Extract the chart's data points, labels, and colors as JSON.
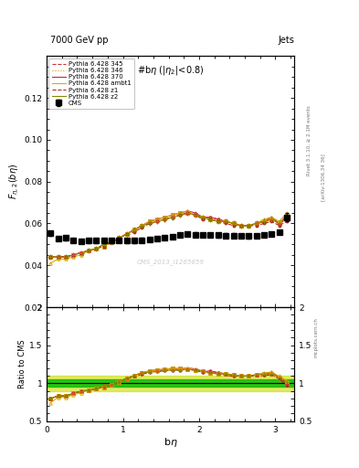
{
  "title_top_left": "7000 GeV pp",
  "title_top_right": "Jets",
  "plot_title": "#bη (|η₂|<0.8)",
  "watermark": "CMS_2013_I1265659",
  "rivet_label": "Rivet 3.1.10, ≥ 2.1M events",
  "arxiv_label": "[arXiv:1306.34 36]",
  "mcplots_label": "mcplots.cern.ch",
  "ylim_main": [
    0.02,
    0.14
  ],
  "ylim_ratio": [
    0.5,
    2.0
  ],
  "xlim": [
    0.0,
    3.25
  ],
  "cms_x": [
    0.05,
    0.15,
    0.25,
    0.35,
    0.45,
    0.55,
    0.65,
    0.75,
    0.85,
    0.95,
    1.05,
    1.15,
    1.25,
    1.35,
    1.45,
    1.55,
    1.65,
    1.75,
    1.85,
    1.95,
    2.05,
    2.15,
    2.25,
    2.35,
    2.45,
    2.55,
    2.65,
    2.75,
    2.85,
    2.95,
    3.05,
    3.15
  ],
  "cms_y": [
    0.0552,
    0.0527,
    0.053,
    0.0519,
    0.0515,
    0.0517,
    0.0518,
    0.0518,
    0.0519,
    0.052,
    0.0518,
    0.0517,
    0.052,
    0.0524,
    0.0528,
    0.0532,
    0.0536,
    0.0546,
    0.055,
    0.0547,
    0.0545,
    0.0545,
    0.0544,
    0.0543,
    0.0542,
    0.054,
    0.0539,
    0.054,
    0.0545,
    0.055,
    0.0558,
    0.063
  ],
  "cms_yerr": [
    0.001,
    0.001,
    0.001,
    0.001,
    0.001,
    0.001,
    0.001,
    0.001,
    0.001,
    0.001,
    0.001,
    0.001,
    0.001,
    0.001,
    0.001,
    0.001,
    0.001,
    0.001,
    0.001,
    0.001,
    0.001,
    0.001,
    0.001,
    0.001,
    0.001,
    0.001,
    0.001,
    0.001,
    0.001,
    0.001,
    0.001,
    0.002
  ],
  "p345_y": [
    0.044,
    0.044,
    0.044,
    0.045,
    0.046,
    0.047,
    0.048,
    0.05,
    0.051,
    0.053,
    0.055,
    0.057,
    0.059,
    0.06,
    0.061,
    0.062,
    0.063,
    0.064,
    0.065,
    0.064,
    0.063,
    0.063,
    0.062,
    0.061,
    0.06,
    0.059,
    0.059,
    0.06,
    0.061,
    0.062,
    0.06,
    0.062
  ],
  "p346_y": [
    0.044,
    0.044,
    0.044,
    0.045,
    0.046,
    0.047,
    0.048,
    0.049,
    0.051,
    0.053,
    0.055,
    0.057,
    0.059,
    0.061,
    0.062,
    0.063,
    0.064,
    0.065,
    0.065,
    0.064,
    0.063,
    0.062,
    0.061,
    0.061,
    0.06,
    0.059,
    0.059,
    0.06,
    0.061,
    0.062,
    0.06,
    0.063
  ],
  "p370_y": [
    0.044,
    0.044,
    0.044,
    0.045,
    0.046,
    0.047,
    0.048,
    0.05,
    0.051,
    0.053,
    0.055,
    0.057,
    0.059,
    0.061,
    0.062,
    0.063,
    0.064,
    0.065,
    0.066,
    0.065,
    0.063,
    0.063,
    0.062,
    0.061,
    0.06,
    0.059,
    0.059,
    0.06,
    0.061,
    0.063,
    0.06,
    0.063
  ],
  "pambt1_y": [
    0.041,
    0.043,
    0.043,
    0.044,
    0.045,
    0.047,
    0.048,
    0.05,
    0.051,
    0.053,
    0.055,
    0.057,
    0.059,
    0.061,
    0.062,
    0.063,
    0.064,
    0.065,
    0.066,
    0.064,
    0.063,
    0.062,
    0.061,
    0.061,
    0.06,
    0.059,
    0.059,
    0.06,
    0.062,
    0.063,
    0.061,
    0.065
  ],
  "pz1_y": [
    0.044,
    0.044,
    0.044,
    0.045,
    0.046,
    0.047,
    0.048,
    0.049,
    0.051,
    0.053,
    0.055,
    0.056,
    0.058,
    0.06,
    0.061,
    0.062,
    0.063,
    0.064,
    0.065,
    0.064,
    0.062,
    0.062,
    0.061,
    0.06,
    0.059,
    0.059,
    0.059,
    0.059,
    0.06,
    0.061,
    0.059,
    0.061
  ],
  "pz2_y": [
    0.044,
    0.044,
    0.044,
    0.045,
    0.046,
    0.047,
    0.048,
    0.05,
    0.051,
    0.053,
    0.055,
    0.057,
    0.059,
    0.06,
    0.061,
    0.062,
    0.063,
    0.064,
    0.065,
    0.064,
    0.063,
    0.062,
    0.061,
    0.061,
    0.06,
    0.059,
    0.059,
    0.06,
    0.061,
    0.062,
    0.06,
    0.064
  ],
  "color_345": "#cc3333",
  "color_346": "#cc9900",
  "color_370": "#cc2244",
  "color_ambt1": "#ddaa00",
  "color_z1": "#bb2222",
  "color_z2": "#888800",
  "band_inner_color": "#00bb00",
  "band_outer_color": "#ccdd00",
  "band_inner": 0.05,
  "band_outer": 0.1
}
